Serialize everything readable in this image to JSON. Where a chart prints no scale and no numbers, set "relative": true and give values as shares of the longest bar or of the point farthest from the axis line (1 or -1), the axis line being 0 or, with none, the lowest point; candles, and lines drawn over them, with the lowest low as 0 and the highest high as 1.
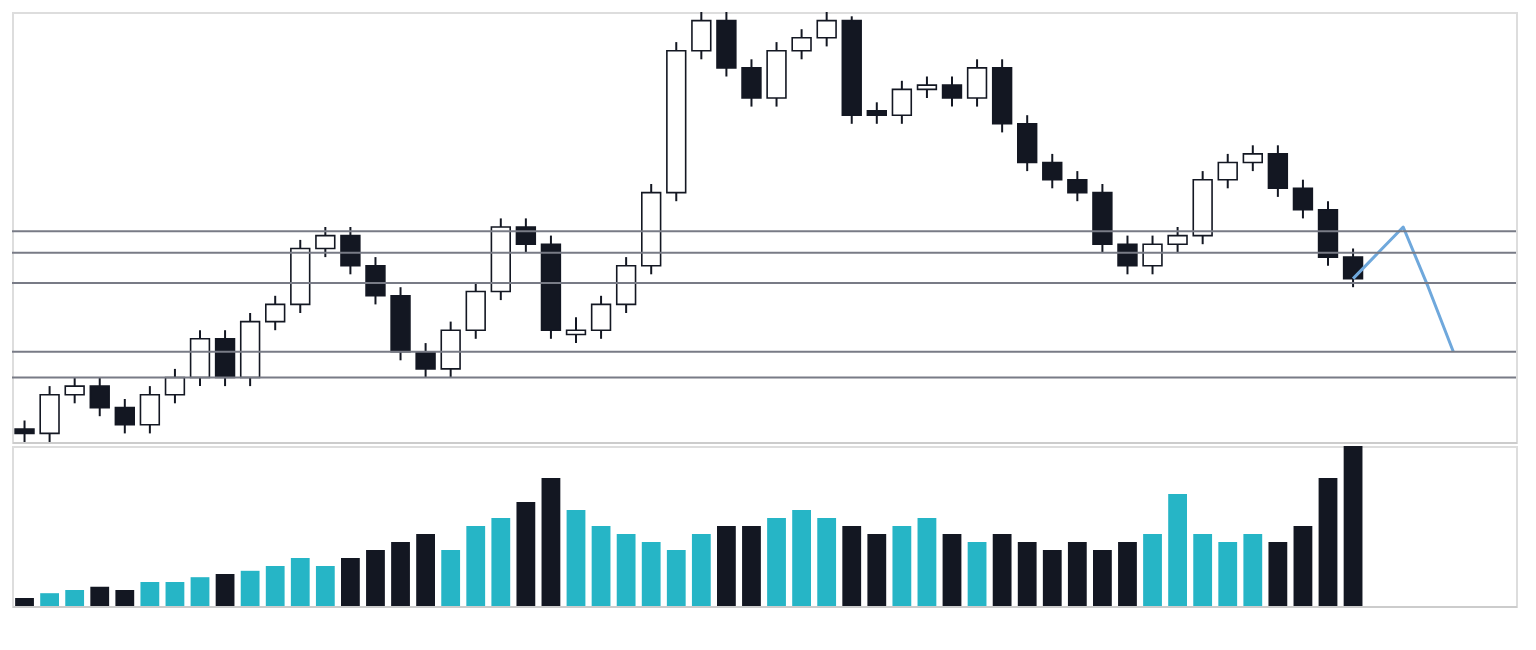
{
  "chart_data": [
    {
      "type": "candlestick",
      "relative": true,
      "categories": [
        null,
        null,
        null,
        null,
        null,
        null,
        null,
        null,
        null,
        null,
        null,
        null,
        null,
        null,
        null,
        null,
        null,
        null,
        null,
        null,
        null,
        null,
        null,
        null,
        null,
        null,
        null,
        null,
        null,
        null,
        null,
        null,
        null,
        null,
        null,
        null,
        null,
        null,
        null,
        null,
        null,
        null,
        null,
        null,
        null,
        null,
        null,
        null,
        null,
        null,
        null,
        null,
        null,
        null,
        null,
        null,
        null,
        null,
        null,
        null
      ],
      "tick_labels": false,
      "series": [
        {
          "type": "candlestick",
          "ohlc": [
            [
              0.03,
              0.05,
              0.0,
              0.02
            ],
            [
              0.02,
              0.13,
              0.0,
              0.11
            ],
            [
              0.11,
              0.15,
              0.09,
              0.13
            ],
            [
              0.13,
              0.15,
              0.06,
              0.08
            ],
            [
              0.08,
              0.1,
              0.02,
              0.04
            ],
            [
              0.04,
              0.13,
              0.02,
              0.11
            ],
            [
              0.11,
              0.17,
              0.09,
              0.15
            ],
            [
              0.15,
              0.26,
              0.13,
              0.24
            ],
            [
              0.24,
              0.26,
              0.13,
              0.15
            ],
            [
              0.15,
              0.3,
              0.13,
              0.28
            ],
            [
              0.28,
              0.34,
              0.26,
              0.32
            ],
            [
              0.32,
              0.47,
              0.3,
              0.45
            ],
            [
              0.45,
              0.5,
              0.43,
              0.48
            ],
            [
              0.48,
              0.5,
              0.39,
              0.41
            ],
            [
              0.41,
              0.43,
              0.32,
              0.34
            ],
            [
              0.34,
              0.36,
              0.19,
              0.21
            ],
            [
              0.21,
              0.23,
              0.15,
              0.17
            ],
            [
              0.17,
              0.28,
              0.15,
              0.26
            ],
            [
              0.26,
              0.37,
              0.24,
              0.35
            ],
            [
              0.35,
              0.52,
              0.33,
              0.5
            ],
            [
              0.5,
              0.52,
              0.44,
              0.46
            ],
            [
              0.46,
              0.48,
              0.24,
              0.26
            ],
            [
              0.25,
              0.29,
              0.23,
              0.26
            ],
            [
              0.26,
              0.34,
              0.24,
              0.32
            ],
            [
              0.32,
              0.43,
              0.3,
              0.41
            ],
            [
              0.41,
              0.6,
              0.39,
              0.58
            ],
            [
              0.58,
              0.93,
              0.56,
              0.91
            ],
            [
              0.91,
              1.0,
              0.89,
              0.98
            ],
            [
              0.98,
              1.0,
              0.85,
              0.87
            ],
            [
              0.87,
              0.89,
              0.78,
              0.8
            ],
            [
              0.8,
              0.93,
              0.78,
              0.91
            ],
            [
              0.91,
              0.96,
              0.89,
              0.94
            ],
            [
              0.94,
              1.0,
              0.92,
              0.98
            ],
            [
              0.98,
              0.99,
              0.74,
              0.76
            ],
            [
              0.77,
              0.79,
              0.74,
              0.76
            ],
            [
              0.76,
              0.84,
              0.74,
              0.82
            ],
            [
              0.82,
              0.85,
              0.8,
              0.83
            ],
            [
              0.83,
              0.85,
              0.78,
              0.8
            ],
            [
              0.8,
              0.89,
              0.78,
              0.87
            ],
            [
              0.87,
              0.89,
              0.72,
              0.74
            ],
            [
              0.74,
              0.76,
              0.63,
              0.65
            ],
            [
              0.65,
              0.67,
              0.59,
              0.61
            ],
            [
              0.61,
              0.63,
              0.56,
              0.58
            ],
            [
              0.58,
              0.6,
              0.44,
              0.46
            ],
            [
              0.46,
              0.48,
              0.39,
              0.41
            ],
            [
              0.41,
              0.48,
              0.39,
              0.46
            ],
            [
              0.46,
              0.5,
              0.44,
              0.48
            ],
            [
              0.48,
              0.63,
              0.46,
              0.61
            ],
            [
              0.61,
              0.67,
              0.59,
              0.65
            ],
            [
              0.65,
              0.69,
              0.63,
              0.67
            ],
            [
              0.67,
              0.69,
              0.57,
              0.59
            ],
            [
              0.59,
              0.61,
              0.52,
              0.54
            ],
            [
              0.54,
              0.56,
              0.41,
              0.43
            ],
            [
              0.43,
              0.45,
              0.36,
              0.38
            ],
            null,
            null,
            null,
            null,
            null,
            null
          ]
        },
        {
          "type": "line",
          "color": "#6fa8dc",
          "values": [
            null,
            null,
            null,
            null,
            null,
            null,
            null,
            null,
            null,
            null,
            null,
            null,
            null,
            null,
            null,
            null,
            null,
            null,
            null,
            null,
            null,
            null,
            null,
            null,
            null,
            null,
            null,
            null,
            null,
            null,
            null,
            null,
            null,
            null,
            null,
            null,
            null,
            null,
            null,
            null,
            null,
            null,
            null,
            null,
            null,
            null,
            null,
            null,
            null,
            null,
            null,
            null,
            null,
            0.38,
            0.44,
            0.5,
            0.36,
            0.21,
            null,
            null
          ]
        }
      ],
      "ref_lines": [
        {
          "axis": "y",
          "value": 0.49,
          "color": "#787b86"
        },
        {
          "axis": "y",
          "value": 0.44,
          "color": "#787b86"
        },
        {
          "axis": "y",
          "value": 0.37,
          "color": "#787b86"
        },
        {
          "axis": "y",
          "value": 0.21,
          "color": "#787b86"
        },
        {
          "axis": "y",
          "value": 0.15,
          "color": "#787b86"
        }
      ]
    },
    {
      "type": "bar",
      "relative": true,
      "categories": [
        null,
        null,
        null,
        null,
        null,
        null,
        null,
        null,
        null,
        null,
        null,
        null,
        null,
        null,
        null,
        null,
        null,
        null,
        null,
        null,
        null,
        null,
        null,
        null,
        null,
        null,
        null,
        null,
        null,
        null,
        null,
        null,
        null,
        null,
        null,
        null,
        null,
        null,
        null,
        null,
        null,
        null,
        null,
        null,
        null,
        null,
        null,
        null,
        null,
        null,
        null,
        null,
        null,
        null,
        null,
        null,
        null,
        null,
        null,
        null
      ],
      "tick_labels": false,
      "values": [
        0.05,
        0.08,
        0.1,
        0.12,
        0.1,
        0.15,
        0.15,
        0.18,
        0.2,
        0.22,
        0.25,
        0.3,
        0.25,
        0.3,
        0.35,
        0.4,
        0.45,
        0.35,
        0.5,
        0.55,
        0.65,
        0.8,
        0.6,
        0.5,
        0.45,
        0.4,
        0.35,
        0.45,
        0.5,
        0.5,
        0.55,
        0.6,
        0.55,
        0.5,
        0.45,
        0.5,
        0.55,
        0.45,
        0.4,
        0.45,
        0.4,
        0.35,
        0.4,
        0.35,
        0.4,
        0.45,
        0.7,
        0.45,
        0.4,
        0.45,
        0.4,
        0.5,
        0.8,
        1.0,
        null,
        null,
        null,
        null,
        null,
        null
      ],
      "colors": [
        "#131722",
        "#26b5c6",
        "#26b5c6",
        "#131722",
        "#131722",
        "#26b5c6",
        "#26b5c6",
        "#26b5c6",
        "#131722",
        "#26b5c6",
        "#26b5c6",
        "#26b5c6",
        "#26b5c6",
        "#131722",
        "#131722",
        "#131722",
        "#131722",
        "#26b5c6",
        "#26b5c6",
        "#26b5c6",
        "#131722",
        "#131722",
        "#26b5c6",
        "#26b5c6",
        "#26b5c6",
        "#26b5c6",
        "#26b5c6",
        "#26b5c6",
        "#131722",
        "#131722",
        "#26b5c6",
        "#26b5c6",
        "#26b5c6",
        "#131722",
        "#131722",
        "#26b5c6",
        "#26b5c6",
        "#131722",
        "#26b5c6",
        "#131722",
        "#131722",
        "#131722",
        "#131722",
        "#131722",
        "#131722",
        "#26b5c6",
        "#26b5c6",
        "#26b5c6",
        "#26b5c6",
        "#26b5c6",
        "#131722",
        "#131722",
        "#131722",
        "#131722",
        null,
        null,
        null,
        null,
        null,
        null
      ]
    }
  ]
}
